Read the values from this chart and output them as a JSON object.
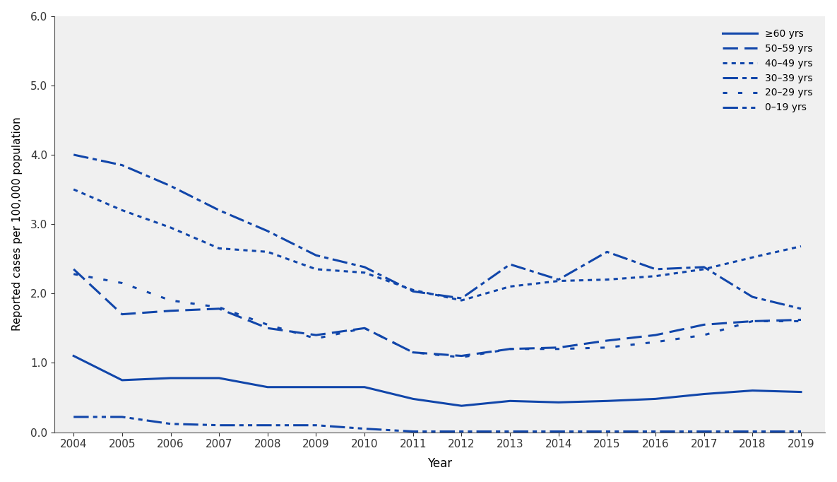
{
  "years": [
    2004,
    2005,
    2006,
    2007,
    2008,
    2009,
    2010,
    2011,
    2012,
    2013,
    2014,
    2015,
    2016,
    2017,
    2018,
    2019
  ],
  "series": {
    "ge60": [
      1.1,
      0.75,
      0.78,
      0.78,
      0.65,
      0.65,
      0.65,
      0.48,
      0.38,
      0.45,
      0.43,
      0.45,
      0.48,
      0.55,
      0.6,
      0.58
    ],
    "50_59": [
      2.35,
      1.7,
      1.75,
      1.78,
      1.5,
      1.4,
      1.5,
      1.15,
      1.1,
      1.2,
      1.22,
      1.32,
      1.4,
      1.55,
      1.6,
      1.62
    ],
    "40_49": [
      3.5,
      3.2,
      2.95,
      2.65,
      2.6,
      2.35,
      2.3,
      2.05,
      1.9,
      2.1,
      2.18,
      2.2,
      2.25,
      2.35,
      2.52,
      2.68
    ],
    "30_39": [
      4.0,
      3.85,
      3.55,
      3.2,
      2.9,
      2.55,
      2.38,
      2.03,
      1.93,
      2.42,
      2.2,
      2.6,
      2.35,
      2.38,
      1.95,
      1.78
    ],
    "20_29": [
      2.28,
      2.15,
      1.9,
      1.8,
      1.55,
      1.35,
      1.5,
      1.15,
      1.08,
      1.2,
      1.2,
      1.22,
      1.3,
      1.4,
      1.6,
      1.6
    ],
    "0_19": [
      0.22,
      0.22,
      0.12,
      0.1,
      0.1,
      0.1,
      0.05,
      0.01,
      0.01,
      0.01,
      0.01,
      0.01,
      0.01,
      0.01,
      0.01,
      0.01
    ]
  },
  "legend_labels": {
    "ge60": "≥60 yrs",
    "50_59": "50–59 yrs",
    "40_49": "40–49 yrs",
    "30_39": "30–39 yrs",
    "20_29": "20–29 yrs",
    "0_19": "0–19 yrs"
  },
  "color": "#1146aa",
  "xlabel": "Year",
  "ylabel": "Reported cases per 100,000 population",
  "ylim": [
    0.0,
    6.0
  ],
  "yticks": [
    0.0,
    1.0,
    2.0,
    3.0,
    4.0,
    5.0,
    6.0
  ],
  "ytick_labels": [
    "0.0",
    "1.0",
    "2.0",
    "3.0",
    "4.0",
    "5.0",
    "6.0"
  ],
  "bg_color": "#f0f0f0",
  "fig_color": "#ffffff",
  "axis_fontsize": 11,
  "legend_fontsize": 10,
  "linewidth": 2.2
}
